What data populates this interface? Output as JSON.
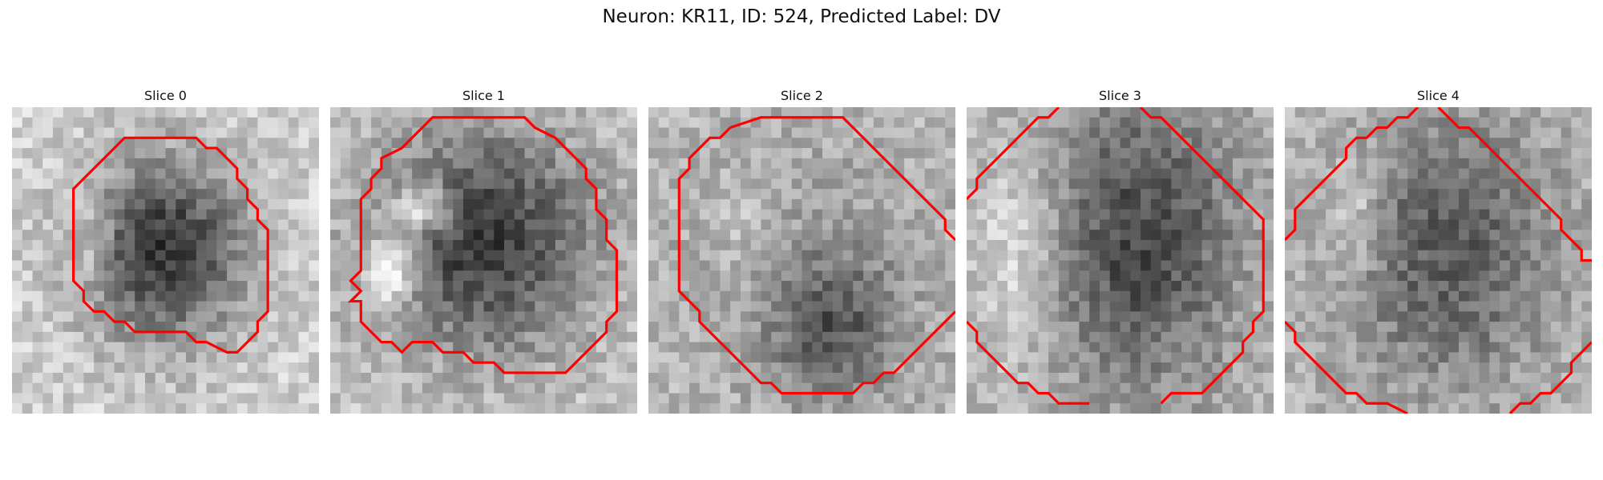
{
  "figure": {
    "title": "Neuron: KR11, ID: 524, Predicted Label: DV",
    "contour_color": "#ff0000"
  },
  "panels": [
    {
      "title": "Slice 0"
    },
    {
      "title": "Slice 1"
    },
    {
      "title": "Slice 2"
    },
    {
      "title": "Slice 3"
    },
    {
      "title": "Slice 4"
    }
  ]
}
